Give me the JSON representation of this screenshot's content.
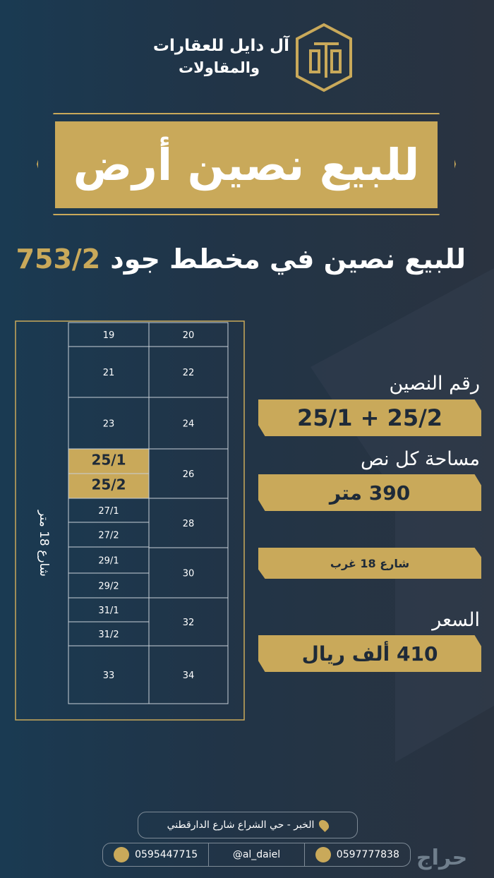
{
  "brand": {
    "name": "آل دايل للعقارات",
    "subname": "والمقاولات"
  },
  "headline": "للبيع نصين أرض",
  "subtitle": {
    "text": "للبيع نصين في مخطط جود",
    "plan": "753/2"
  },
  "plot_map": {
    "street": "شارع 18 متر",
    "lots": [
      {
        "label": "19"
      },
      {
        "label": "21"
      },
      {
        "label": "23"
      },
      {
        "label": "25/1",
        "highlighted": true
      },
      {
        "label": "25/2",
        "highlighted": true
      },
      {
        "label": "27/1"
      },
      {
        "label": "27/2"
      },
      {
        "label": "29/1"
      },
      {
        "label": "29/2"
      },
      {
        "label": "31/1"
      },
      {
        "label": "31/2"
      },
      {
        "label": "33"
      },
      {
        "label": "20"
      },
      {
        "label": "22"
      },
      {
        "label": "24"
      },
      {
        "label": "26"
      },
      {
        "label": "28"
      },
      {
        "label": "30"
      },
      {
        "label": "32"
      },
      {
        "label": "34"
      }
    ]
  },
  "info": {
    "plots_label": "رقم النصين",
    "plots_value": "25/2 + 25/1",
    "area_label": "مساحة كل نص",
    "area_value": "390 متر",
    "street_value": "شارع 18 غرب",
    "price_label": "السعر",
    "price_value": "410 ألف ريال"
  },
  "footer": {
    "location": "الخبر - حي الشراع شارع الدارقطني",
    "phone_whatsapp": "0595447715",
    "handle": "@al_daiel",
    "phone_call": "0597777838"
  },
  "watermark": "حراج"
}
